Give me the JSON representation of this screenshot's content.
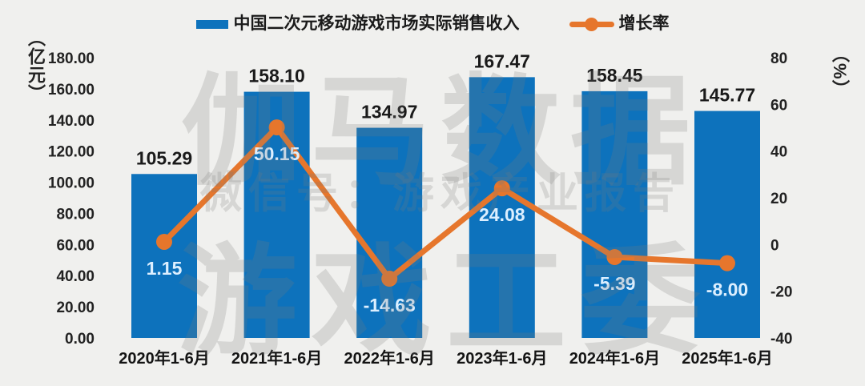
{
  "background": "#F0F0EE",
  "legend": {
    "bar_label": "中国二次元移动游戏市场实际销售收入",
    "line_label": "增长率"
  },
  "watermark": {
    "line1": "伽马数据",
    "line2": "微信号：游戏产业报告",
    "line3": "游戏工委"
  },
  "colors": {
    "bar": "#0D72BC",
    "line": "#E6762C",
    "value_label": "#1a1a1a",
    "growth_label": "#DCEFFF",
    "tick_label": "#222222",
    "category_label": "#141414"
  },
  "chart_data": {
    "type": "bar+line",
    "categories": [
      "2020年1-6月",
      "2021年1-6月",
      "2022年1-6月",
      "2023年1-6月",
      "2024年1-6月",
      "2025年1-6月"
    ],
    "series": [
      {
        "name": "中国二次元移动游戏市场实际销售收入",
        "type": "bar",
        "axis": "left",
        "values": [
          105.29,
          158.1,
          134.97,
          167.47,
          158.45,
          145.77
        ]
      },
      {
        "name": "增长率",
        "type": "line",
        "axis": "right",
        "values": [
          1.15,
          50.15,
          -14.63,
          24.08,
          -5.39,
          -8.0
        ]
      }
    ],
    "left_axis": {
      "label": "（亿元）",
      "min": 0,
      "max": 180,
      "step": 20,
      "ticks": [
        "180.00",
        "160.00",
        "140.00",
        "120.00",
        "100.00",
        "80.00",
        "60.00",
        "40.00",
        "20.00",
        "0.00"
      ]
    },
    "right_axis": {
      "label": "（%）",
      "min": -40,
      "max": 80,
      "step": 20,
      "ticks": [
        "80",
        "60",
        "40",
        "20",
        "0",
        "-20",
        "-40"
      ]
    },
    "grid": false,
    "legend_position": "top"
  }
}
